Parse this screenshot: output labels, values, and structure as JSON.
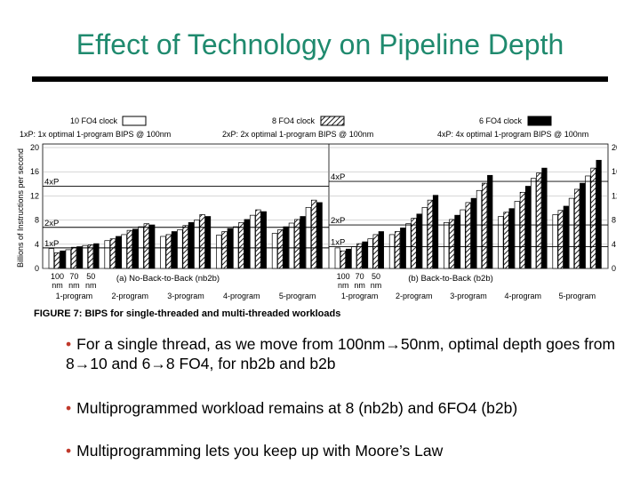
{
  "slide": {
    "title": "Effect of Technology on Pipeline Depth",
    "title_color": "#1f8a6e"
  },
  "figure_caption": "FIGURE 7: BIPS for single-threaded and multi-threaded workloads",
  "bullets": [
    "For a single thread, as we move from 100nm→50nm, optimal depth goes from 8→10 and 6→8 FO4, for nb2b and b2b",
    "Multiprogrammed workload remains at 8 (nb2b) and 6FO4 (b2b)",
    "Multiprogramming lets you keep up with Moore’s Law"
  ],
  "bullet_color": "#c0392b",
  "chart_data": {
    "type": "bar",
    "ylabel": "Billions of Instructions per second",
    "ylim": [
      0,
      20
    ],
    "yticks": [
      0,
      4,
      8,
      12,
      16,
      20
    ],
    "legend_series": [
      {
        "name": "10 FO4 clock",
        "desc": "1xP: 1x optimal 1-program BIPS @ 100nm",
        "fill": "white"
      },
      {
        "name": "8 FO4 clock",
        "desc": "2xP: 2x optimal 1-program BIPS @ 100nm",
        "fill": "hatched"
      },
      {
        "name": "6 FO4 clock",
        "desc": "4xP: 4x optimal 1-program BIPS @ 100nm",
        "fill": "black"
      }
    ],
    "reference_lines": [
      {
        "label": "1xP",
        "left_value": 3.4,
        "right_value": 3.6
      },
      {
        "label": "2xP",
        "left_value": 6.8,
        "right_value": 7.2
      },
      {
        "label": "4xP",
        "left_value": 13.6,
        "right_value": 14.4
      }
    ],
    "panels": [
      {
        "label": "(a) No-Back-to-Back (nb2b)",
        "x_sub_labels": [
          "100",
          "70",
          "50"
        ],
        "x_sub_unit": "nm",
        "groups": [
          {
            "label": "1-program",
            "bars": [
              3.3,
              2.6,
              2.9,
              3.1,
              3.5,
              3.6,
              3.8,
              3.9,
              4.1
            ]
          },
          {
            "label": "2-program",
            "bars": [
              4.6,
              4.9,
              5.3,
              5.6,
              6.3,
              6.5,
              6.9,
              7.4,
              7.2
            ]
          },
          {
            "label": "3-program",
            "bars": [
              5.3,
              5.6,
              6.1,
              6.4,
              7.1,
              7.6,
              8.0,
              8.9,
              8.6
            ]
          },
          {
            "label": "4-program",
            "bars": [
              5.5,
              6.1,
              6.6,
              6.9,
              7.6,
              8.1,
              8.8,
              9.7,
              9.4
            ]
          },
          {
            "label": "5-program",
            "bars": [
              5.8,
              6.4,
              6.9,
              7.5,
              8.1,
              8.6,
              10.1,
              11.3,
              10.9
            ]
          }
        ]
      },
      {
        "label": "(b) Back-to-Back (b2b)",
        "x_sub_labels": [
          "100",
          "70",
          "50"
        ],
        "x_sub_unit": "nm",
        "groups": [
          {
            "label": "1-program",
            "bars": [
              3.4,
              2.9,
              3.2,
              3.6,
              4.1,
              4.4,
              4.9,
              5.6,
              6.1
            ]
          },
          {
            "label": "2-program",
            "bars": [
              5.6,
              6.1,
              6.7,
              7.4,
              8.3,
              9.0,
              10.1,
              11.3,
              12.1
            ]
          },
          {
            "label": "3-program",
            "bars": [
              7.6,
              8.1,
              8.8,
              9.7,
              10.9,
              11.6,
              12.9,
              14.1,
              15.4
            ]
          },
          {
            "label": "4-program",
            "bars": [
              8.6,
              9.3,
              9.9,
              11.1,
              12.6,
              13.6,
              14.9,
              15.8,
              16.6
            ]
          },
          {
            "label": "5-program",
            "bars": [
              8.9,
              9.6,
              10.3,
              11.6,
              13.1,
              14.1,
              15.3,
              16.6,
              17.9
            ]
          }
        ]
      }
    ]
  }
}
